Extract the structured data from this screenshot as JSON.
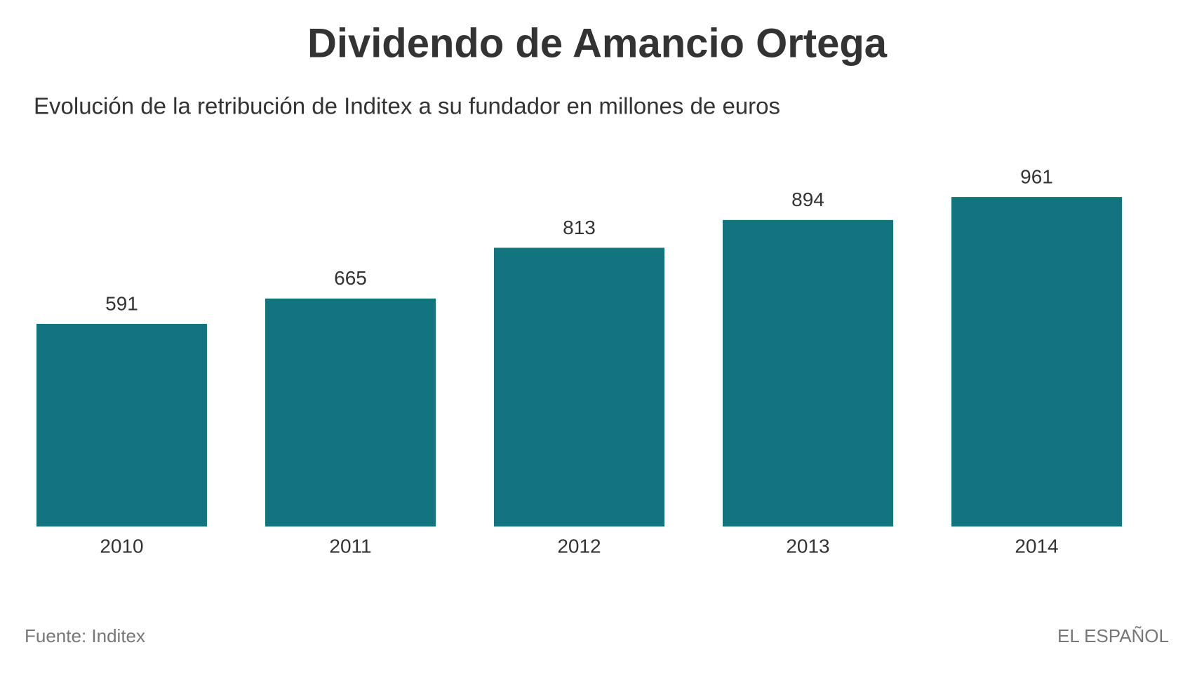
{
  "chart_data": {
    "type": "bar",
    "title": "Dividendo de Amancio Ortega",
    "subtitle": "Evolución de la retribución de Inditex a su fundador en millones de euros",
    "categories": [
      "2010",
      "2011",
      "2012",
      "2013",
      "2014"
    ],
    "values": [
      591,
      665,
      813,
      894,
      961
    ],
    "color": "#12747f",
    "source": "Fuente: Inditex",
    "credit": "EL ESPAÑOL"
  }
}
